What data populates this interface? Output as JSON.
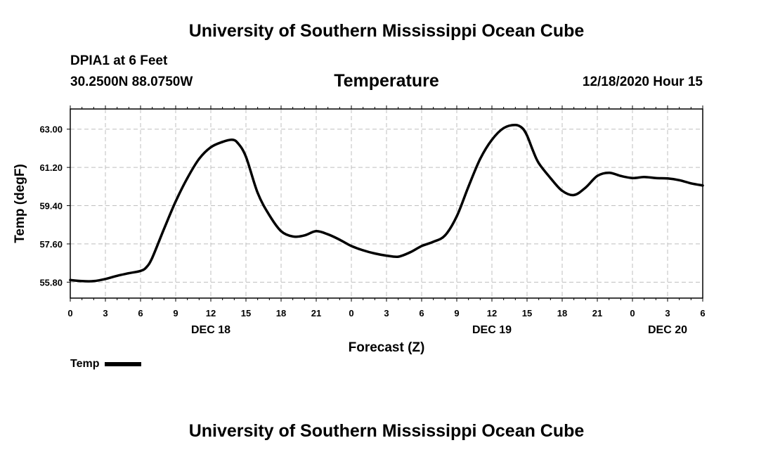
{
  "header": {
    "title": "University of Southern Mississippi Ocean Cube",
    "station": "DPIA1 at 6 Feet",
    "coords": "30.2500N 88.0750W",
    "chart_title": "Temperature",
    "valid_time": "12/18/2020 Hour 15"
  },
  "footer": {
    "title": "University of Southern Mississippi Ocean Cube"
  },
  "legend": {
    "label": "Temp"
  },
  "colors": {
    "line": "#000000",
    "grid": "#bfbfbf"
  },
  "chart_data": {
    "type": "line",
    "title": "Temperature",
    "xlabel": "Forecast (Z)",
    "ylabel": "Temp (degF)",
    "x_unit": "hours since 00Z DEC 18",
    "xlim": [
      0,
      54
    ],
    "ylim": [
      55.05,
      63.95
    ],
    "yticks": [
      55.8,
      57.6,
      59.4,
      61.2,
      63.0
    ],
    "ytick_labels": [
      "55.80",
      "57.60",
      "59.40",
      "61.20",
      "63.00"
    ],
    "xticks": [
      0,
      3,
      6,
      9,
      12,
      15,
      18,
      21,
      24,
      27,
      30,
      33,
      36,
      39,
      42,
      45,
      48,
      51,
      54
    ],
    "xtick_labels": [
      "0",
      "3",
      "6",
      "9",
      "12",
      "15",
      "18",
      "21",
      "0",
      "3",
      "6",
      "9",
      "12",
      "15",
      "18",
      "21",
      "0",
      "3",
      "6"
    ],
    "day_labels": [
      {
        "x": 12,
        "label": "DEC 18"
      },
      {
        "x": 36,
        "label": "DEC 19"
      },
      {
        "x": 51,
        "label": "DEC 20"
      }
    ],
    "grid": true,
    "legend_position": "bottom-left",
    "series": [
      {
        "name": "Temp",
        "x": [
          0,
          1,
          2,
          3,
          4,
          5,
          6,
          6.5,
          7,
          8,
          9,
          10,
          11,
          12,
          13,
          13.8,
          14.3,
          15,
          16,
          17,
          18,
          19,
          20,
          21,
          22,
          23,
          24,
          25,
          26,
          27,
          28,
          29,
          30,
          31,
          32,
          33,
          34,
          35,
          36,
          37,
          38,
          38.6,
          39,
          39.5,
          40,
          41,
          42,
          43,
          44,
          45,
          46,
          47,
          48,
          49,
          50,
          51,
          52,
          53,
          54
        ],
        "y": [
          55.9,
          55.85,
          55.85,
          55.95,
          56.1,
          56.22,
          56.33,
          56.5,
          56.95,
          58.3,
          59.6,
          60.7,
          61.6,
          62.15,
          62.4,
          62.5,
          62.35,
          61.7,
          60.0,
          58.95,
          58.2,
          57.95,
          58.0,
          58.2,
          58.05,
          57.8,
          57.5,
          57.3,
          57.15,
          57.05,
          57.0,
          57.2,
          57.5,
          57.7,
          58.0,
          58.9,
          60.3,
          61.6,
          62.5,
          63.05,
          63.2,
          63.05,
          62.7,
          62.0,
          61.4,
          60.7,
          60.1,
          59.9,
          60.25,
          60.8,
          60.95,
          60.8,
          60.7,
          60.75,
          60.7,
          60.68,
          60.6,
          60.45,
          60.35
        ]
      }
    ]
  }
}
